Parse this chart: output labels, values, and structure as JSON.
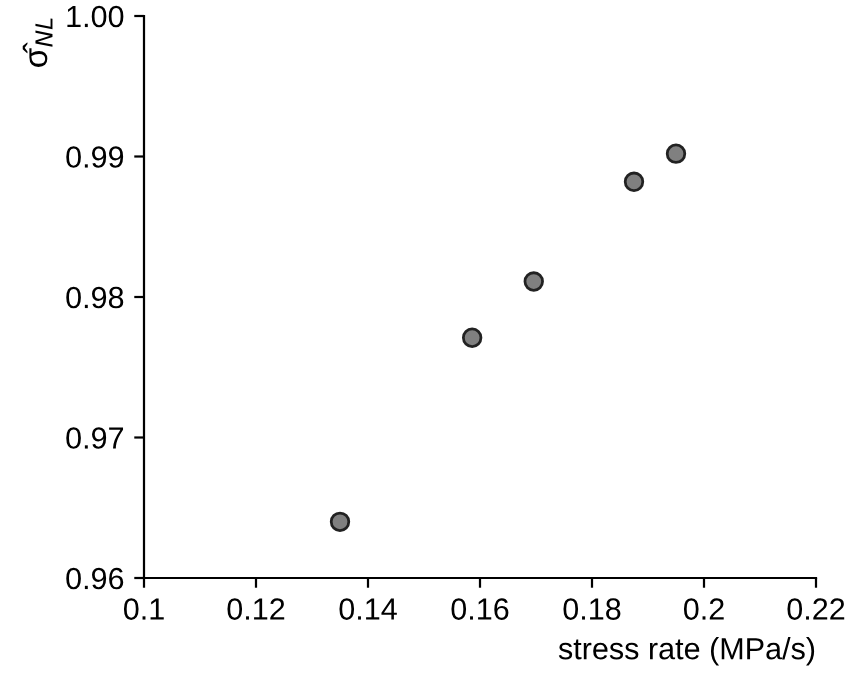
{
  "chart_data": {
    "type": "scatter",
    "xlabel": "stress rate (MPa/s)",
    "ylabel": "σ̂$_{NL}$",
    "x": [
      0.135,
      0.1586,
      0.1696,
      0.1875,
      0.195
    ],
    "values": [
      0.964,
      0.9771,
      0.9811,
      0.9882,
      0.9902
    ],
    "color": "#808080",
    "marker": "circle",
    "grid": false,
    "legend": false,
    "xlim": [
      0.1,
      0.22
    ],
    "xticks": [
      0.1,
      0.12,
      0.14,
      0.16,
      0.18,
      0.2,
      0.22
    ],
    "ylim": [
      0.96,
      1.0
    ],
    "yticks": [
      0.96,
      0.97,
      0.98,
      0.99,
      {
        "value": 1.0,
        "label": "1.00"
      }
    ]
  }
}
